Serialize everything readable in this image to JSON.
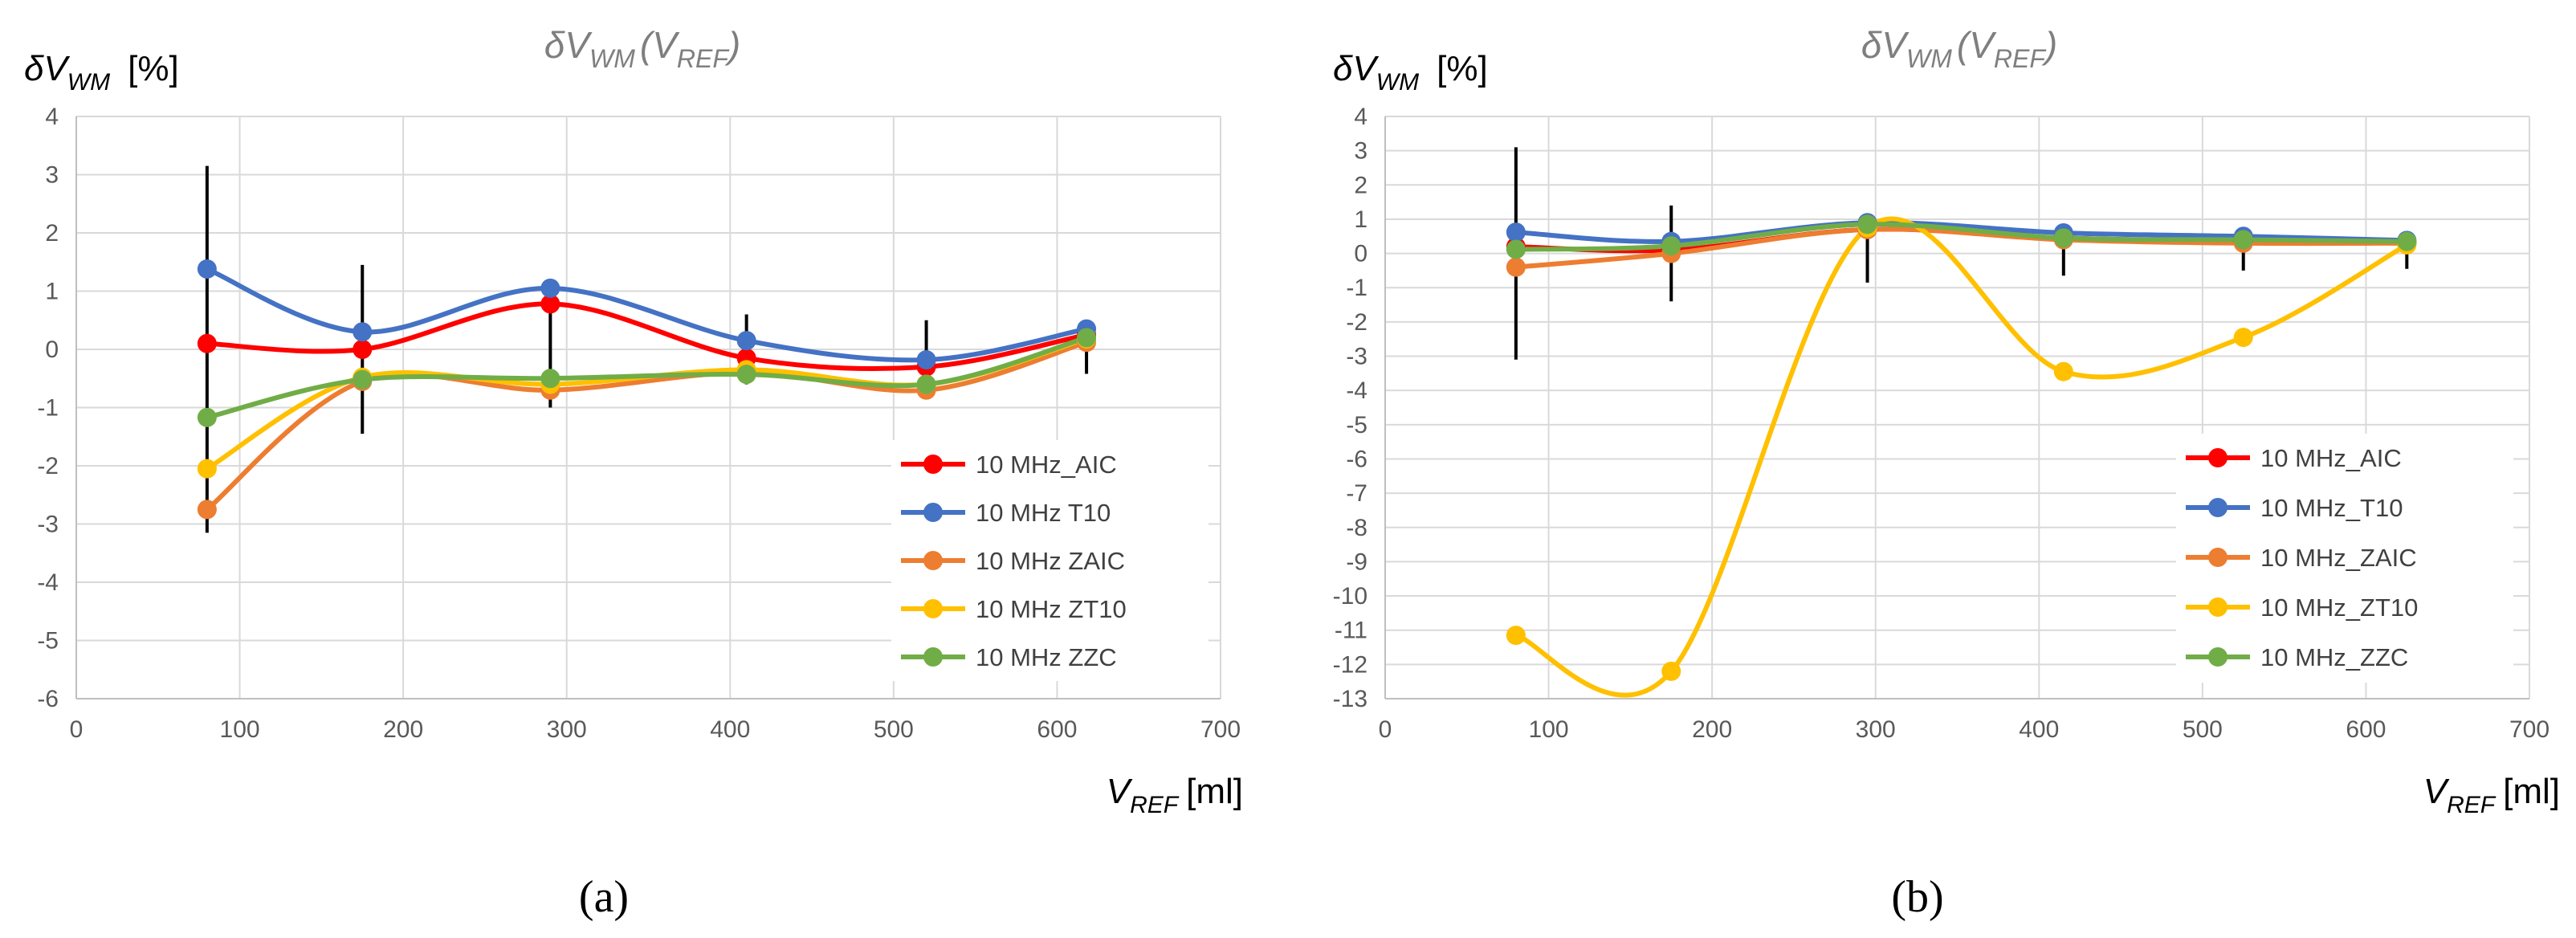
{
  "figure": {
    "captions": [
      "(a)",
      "(b)"
    ]
  },
  "chart_data": [
    {
      "type": "line",
      "title_main": "δV",
      "title_sub": "WM",
      "title_arg_main": "V",
      "title_arg_sub": "REF",
      "ylabel_main": "δV",
      "ylabel_sub": "WM",
      "ylabel_unit": "[%]",
      "xlabel_main": "V",
      "xlabel_sub": "REF",
      "xlabel_unit": "[ml]",
      "xlim": [
        0,
        700
      ],
      "ylim": [
        -6,
        4
      ],
      "xticks": [
        0,
        100,
        200,
        300,
        400,
        500,
        600,
        700
      ],
      "xtick_labels": [
        "0",
        "100",
        "200",
        "300",
        "400",
        "500",
        "600",
        "700"
      ],
      "yticks": [
        -6,
        -5,
        -4,
        -3,
        -2,
        -1,
        0,
        1,
        2,
        3,
        4
      ],
      "ytick_labels": [
        "-6",
        "-5",
        "-4",
        "-3",
        "-2",
        "-1",
        "0",
        "1",
        "2",
        "3",
        "4"
      ],
      "grid": true,
      "legend_position": "bottom-right",
      "error_bars": [
        {
          "x": 80,
          "low": -3.15,
          "high": 3.15
        },
        {
          "x": 175,
          "low": -1.45,
          "high": 1.45
        },
        {
          "x": 290,
          "low": -1.0,
          "high": 1.0
        },
        {
          "x": 410,
          "low": -0.6,
          "high": 0.6
        },
        {
          "x": 520,
          "low": -0.5,
          "high": 0.5
        },
        {
          "x": 618,
          "low": -0.42,
          "high": 0.42
        }
      ],
      "series": [
        {
          "name": "10 MHz_AIC",
          "color": "#ff0000",
          "x": [
            80,
            175,
            290,
            410,
            520,
            618
          ],
          "y": [
            0.1,
            0.0,
            0.78,
            -0.15,
            -0.3,
            0.25
          ]
        },
        {
          "name": "10 MHz T10",
          "color": "#4472c4",
          "x": [
            80,
            175,
            290,
            410,
            520,
            618
          ],
          "y": [
            1.38,
            0.3,
            1.05,
            0.15,
            -0.18,
            0.35
          ]
        },
        {
          "name": "10 MHz ZAIC",
          "color": "#ed7d31",
          "x": [
            80,
            175,
            290,
            410,
            520,
            618
          ],
          "y": [
            -2.75,
            -0.55,
            -0.7,
            -0.4,
            -0.7,
            0.12
          ]
        },
        {
          "name": "10 MHz ZT10",
          "color": "#ffc000",
          "x": [
            80,
            175,
            290,
            410,
            520,
            618
          ],
          "y": [
            -2.05,
            -0.48,
            -0.6,
            -0.35,
            -0.6,
            0.18
          ]
        },
        {
          "name": "10 MHz ZZC",
          "color": "#70ad47",
          "x": [
            80,
            175,
            290,
            410,
            520,
            618
          ],
          "y": [
            -1.17,
            -0.52,
            -0.5,
            -0.43,
            -0.6,
            0.2
          ]
        }
      ]
    },
    {
      "type": "line",
      "title_main": "δV",
      "title_sub": "WM",
      "title_arg_main": "V",
      "title_arg_sub": "REF",
      "ylabel_main": "δV",
      "ylabel_sub": "WM",
      "ylabel_unit": "[%]",
      "xlabel_main": "V",
      "xlabel_sub": "REF",
      "xlabel_unit": "[ml]",
      "xlim": [
        0,
        700
      ],
      "ylim": [
        -13,
        4
      ],
      "xticks": [
        0,
        100,
        200,
        300,
        400,
        500,
        600,
        700
      ],
      "xtick_labels": [
        "0",
        "100",
        "200",
        "300",
        "400",
        "500",
        "600",
        "700"
      ],
      "yticks": [
        -13,
        -12,
        -11,
        -10,
        -9,
        -8,
        -7,
        -6,
        -5,
        -4,
        -3,
        -2,
        -1,
        0,
        1,
        2,
        3,
        4
      ],
      "ytick_labels": [
        "-13",
        "-12",
        "-11",
        "-10",
        "-9",
        "-8",
        "-7",
        "-6",
        "-5",
        "-4",
        "-3",
        "-2",
        "-1",
        "0",
        "1",
        "2",
        "3",
        "4"
      ],
      "grid": true,
      "legend_position": "bottom-right",
      "error_bars": [
        {
          "x": 80,
          "low": -3.1,
          "high": 3.1
        },
        {
          "x": 175,
          "low": -1.4,
          "high": 1.4
        },
        {
          "x": 295,
          "low": -0.85,
          "high": 0.85
        },
        {
          "x": 415,
          "low": -0.65,
          "high": 0.65
        },
        {
          "x": 525,
          "low": -0.5,
          "high": 0.5
        },
        {
          "x": 625,
          "low": -0.45,
          "high": 0.45
        }
      ],
      "series": [
        {
          "name": "10 MHz_AIC",
          "color": "#ff0000",
          "x": [
            80,
            175,
            295,
            415,
            525,
            625
          ],
          "y": [
            0.2,
            0.1,
            0.7,
            0.45,
            0.35,
            0.3
          ]
        },
        {
          "name": "10 MHz_T10",
          "color": "#4472c4",
          "x": [
            80,
            175,
            295,
            415,
            525,
            625
          ],
          "y": [
            0.62,
            0.35,
            0.9,
            0.6,
            0.5,
            0.38
          ]
        },
        {
          "name": "10 MHz_ZAIC",
          "color": "#ed7d31",
          "x": [
            80,
            175,
            295,
            415,
            525,
            625
          ],
          "y": [
            -0.4,
            0.0,
            0.7,
            0.4,
            0.3,
            0.3
          ]
        },
        {
          "name": "10 MHz_ZT10",
          "color": "#ffc000",
          "x": [
            80,
            175,
            295,
            415,
            525,
            625
          ],
          "y": [
            -11.15,
            -12.2,
            0.75,
            -3.45,
            -2.45,
            0.25
          ]
        },
        {
          "name": "10 MHz_ZZC",
          "color": "#70ad47",
          "x": [
            80,
            175,
            295,
            415,
            525,
            625
          ],
          "y": [
            0.12,
            0.22,
            0.85,
            0.45,
            0.4,
            0.35
          ]
        }
      ]
    }
  ]
}
